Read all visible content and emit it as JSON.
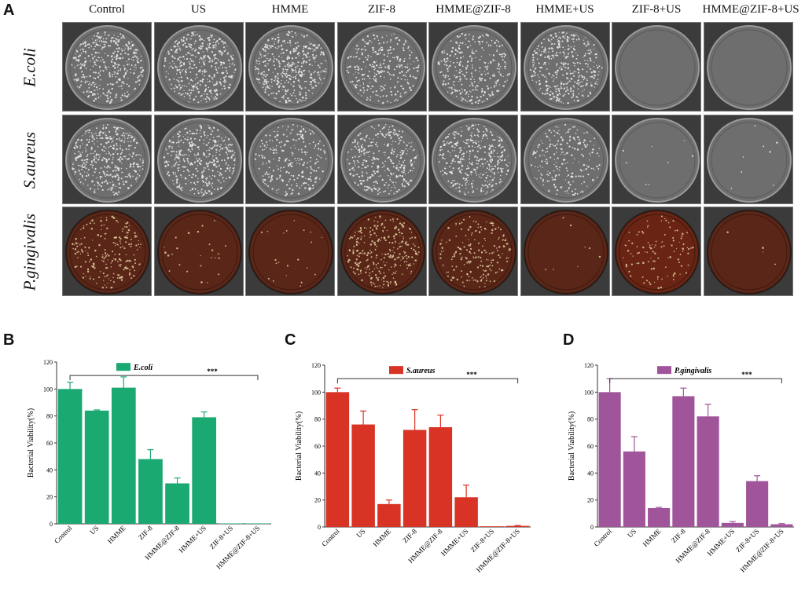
{
  "panel_labels": {
    "a": "A",
    "b": "B",
    "c": "C",
    "d": "D"
  },
  "plates": {
    "columns": [
      "Control",
      "US",
      "HMME",
      "ZIF-8",
      "HMME@ZIF-8",
      "HMME+US",
      "ZIF-8+US",
      "HMME@ZIF-8+US"
    ],
    "rows": [
      "E.coli",
      "S.aureus",
      "P.gingivalis"
    ]
  },
  "colors": {
    "ecoli": "#1aa970",
    "saureus": "#d83325",
    "pgingivalis": "#a0559a"
  },
  "chart_data": [
    {
      "type": "bar",
      "panel": "B",
      "legend": "E.coli",
      "ylabel": "Bacterial Viability(%)",
      "ylim": [
        0,
        120
      ],
      "yticks": [
        0,
        20,
        40,
        60,
        80,
        100,
        120
      ],
      "categories": [
        "Control",
        "US",
        "HMME",
        "ZIF-8",
        "HMME@ZIF-8",
        "HMME+US",
        "ZIF-8+US",
        "HMME@ZIF-8+US"
      ],
      "values": [
        100,
        84,
        101,
        48,
        30,
        79,
        0.3,
        0.3
      ],
      "errors": [
        5,
        0.5,
        8,
        7,
        4,
        4,
        0,
        0
      ],
      "significance": "***",
      "color": "#1aa970"
    },
    {
      "type": "bar",
      "panel": "C",
      "legend": "S.aureus",
      "ylabel": "Bacterial Viability(%)",
      "ylim": [
        0,
        120
      ],
      "yticks": [
        0,
        20,
        40,
        60,
        80,
        100,
        120
      ],
      "categories": [
        "Control",
        "US",
        "HMME",
        "ZIF-8",
        "HMME@ZIF-8",
        "HMME+US",
        "ZIF-8+US",
        "HMME@ZIF-8+US"
      ],
      "values": [
        100,
        76,
        17,
        72,
        74,
        22,
        0.5,
        0.8
      ],
      "errors": [
        3,
        10,
        3,
        15,
        9,
        9,
        0,
        0.3
      ],
      "significance": "***",
      "color": "#d83325"
    },
    {
      "type": "bar",
      "panel": "D",
      "legend": "P.gingivalis",
      "ylabel": "Bacterial Viability(%)",
      "ylim": [
        0,
        120
      ],
      "yticks": [
        0,
        20,
        40,
        60,
        80,
        100,
        120
      ],
      "categories": [
        "Control",
        "US",
        "HMME",
        "ZIF-8",
        "HMME@ZIF-8",
        "HMME+US",
        "ZIF-8+US",
        "HMME@ZIF-8+US"
      ],
      "values": [
        100,
        56,
        14,
        97,
        82,
        3,
        34,
        2
      ],
      "errors": [
        10,
        11,
        0.5,
        6,
        9,
        1,
        4,
        0.5
      ],
      "significance": "***",
      "color": "#a0559a"
    }
  ]
}
